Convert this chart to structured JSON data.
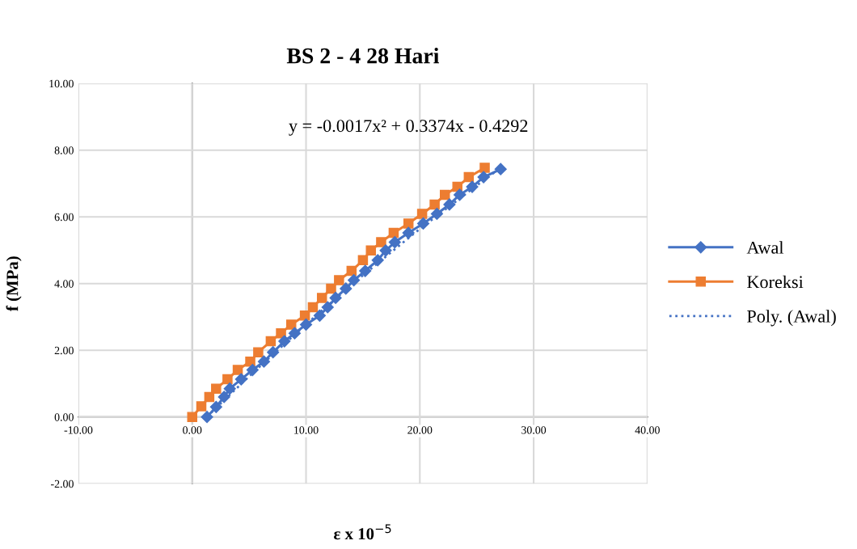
{
  "chart_data": {
    "type": "line",
    "title": "BS 2 - 4 28 Hari",
    "xlabel": "ε x 10$^{−5}$",
    "ylabel": "f (MPa)",
    "annotations": [
      "y = -0.0017x² + 0.3374x - 0.4292"
    ],
    "series": [
      {
        "name": "Awal",
        "color": "#4472c4",
        "marker": "diamond",
        "line_style": "solid",
        "x": [
          1.3,
          2.1,
          2.8,
          3.3,
          4.3,
          5.3,
          6.3,
          7.1,
          8.1,
          9.0,
          10.0,
          11.2,
          11.9,
          12.6,
          13.5,
          14.2,
          15.2,
          16.3,
          17.0,
          17.8,
          19.0,
          20.3,
          21.5,
          22.6,
          23.5,
          24.6,
          25.6,
          27.1
        ],
        "values": [
          0.0,
          0.3,
          0.6,
          0.85,
          1.13,
          1.41,
          1.66,
          1.94,
          2.27,
          2.51,
          2.77,
          3.04,
          3.29,
          3.57,
          3.85,
          4.1,
          4.38,
          4.7,
          4.99,
          5.24,
          5.52,
          5.8,
          6.09,
          6.37,
          6.66,
          6.9,
          7.19,
          7.43
        ]
      },
      {
        "name": "Koreksi",
        "color": "#ed7d31",
        "marker": "square",
        "line_style": "solid",
        "x": [
          0.0,
          0.8,
          1.5,
          2.1,
          3.1,
          4.0,
          5.1,
          5.8,
          6.9,
          7.8,
          8.7,
          9.9,
          10.6,
          11.4,
          12.2,
          12.9,
          14.0,
          15.0,
          15.7,
          16.6,
          17.7,
          19.0,
          20.2,
          21.3,
          22.2,
          23.3,
          24.3,
          25.7
        ],
        "values": [
          0.0,
          0.32,
          0.6,
          0.85,
          1.13,
          1.41,
          1.66,
          1.94,
          2.27,
          2.51,
          2.77,
          3.04,
          3.29,
          3.57,
          3.85,
          4.1,
          4.38,
          4.7,
          4.99,
          5.24,
          5.52,
          5.8,
          6.09,
          6.37,
          6.66,
          6.9,
          7.19,
          7.47
        ]
      },
      {
        "name": "Poly. (Awal)",
        "type": "line",
        "color": "#4472c4",
        "marker": "none",
        "line_style": "dotted",
        "x": [
          1.3,
          5,
          10,
          15,
          20,
          25,
          27.1
        ],
        "values": [
          0.01,
          1.22,
          2.78,
          4.25,
          5.64,
          6.94,
          7.47
        ]
      }
    ],
    "xlim": [
      -10,
      40
    ],
    "xticks": [
      {
        "value": -10,
        "label": "-10.00"
      },
      {
        "value": 0,
        "label": "0.00"
      },
      {
        "value": 10,
        "label": "10.00"
      },
      {
        "value": 20,
        "label": "20.00"
      },
      {
        "value": 30,
        "label": "30.00"
      },
      {
        "value": 40,
        "label": "40.00"
      }
    ],
    "ylim": [
      -2,
      10
    ],
    "yticks": [
      {
        "value": -2,
        "label": "-2.00"
      },
      {
        "value": 0,
        "label": "0.00"
      },
      {
        "value": 2,
        "label": "2.00"
      },
      {
        "value": 4,
        "label": "4.00"
      },
      {
        "value": 6,
        "label": "6.00"
      },
      {
        "value": 8,
        "label": "8.00"
      },
      {
        "value": 10,
        "label": "10.00"
      }
    ],
    "grid": true,
    "legend": "right"
  }
}
